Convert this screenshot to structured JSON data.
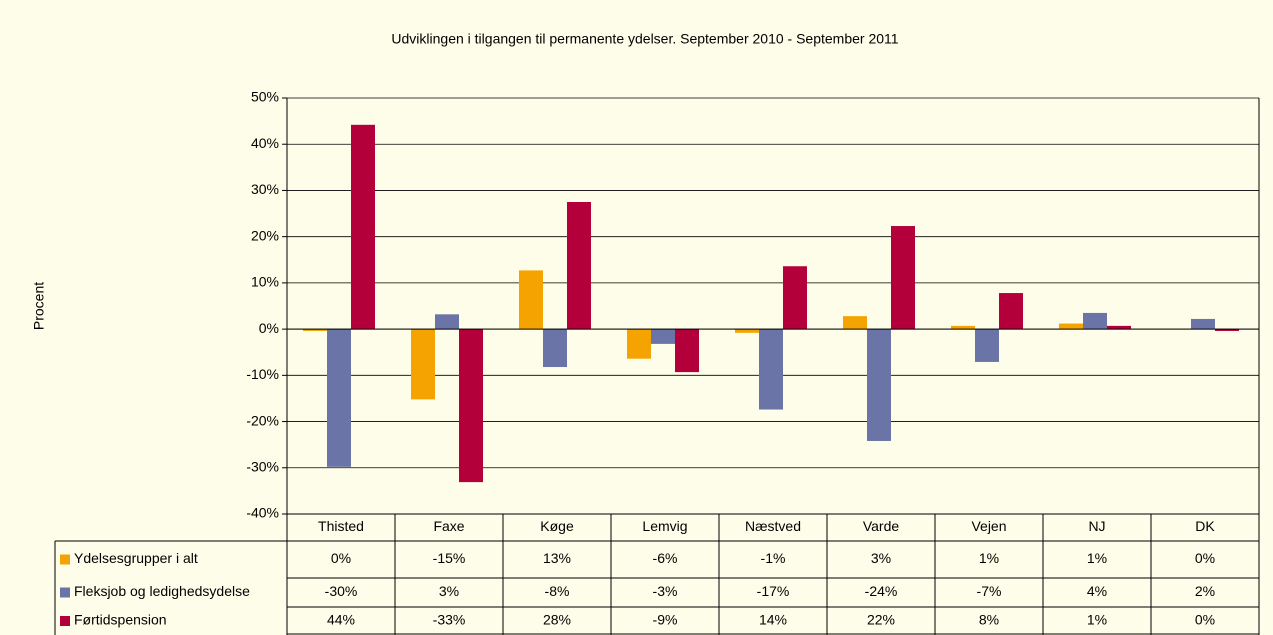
{
  "chart_data": {
    "type": "bar",
    "title": "Udviklingen i tilgangen til permanente ydelser. September 2010 - September 2011",
    "y_label": "Procent",
    "categories": [
      "Thisted",
      "Faxe",
      "Køge",
      "Lemvig",
      "Næstved",
      "Varde",
      "Vejen",
      "NJ",
      "DK"
    ],
    "series": [
      {
        "name": "Ydelsesgrupper i alt",
        "color": "#f4a300",
        "values": [
          -0.4,
          -15.2,
          12.7,
          -6.4,
          -0.8,
          2.8,
          0.7,
          1.2,
          0
        ],
        "value_labels": [
          "0%",
          "-15%",
          "13%",
          "-6%",
          "-1%",
          "3%",
          "1%",
          "1%",
          "0%"
        ]
      },
      {
        "name": "Fleksjob og ledighedsydelse",
        "color": "#6b74a6",
        "values": [
          -29.8,
          3.2,
          -8.2,
          -3.2,
          -17.4,
          -24.2,
          -7.1,
          3.5,
          2.2
        ],
        "value_labels": [
          "-30%",
          "3%",
          "-8%",
          "-3%",
          "-17%",
          "-24%",
          "-7%",
          "4%",
          "2%"
        ]
      },
      {
        "name": "Førtidspension",
        "color": "#b3003a",
        "values": [
          44.2,
          -33.1,
          27.5,
          -9.3,
          13.6,
          22.3,
          7.8,
          0.7,
          -0.4
        ],
        "value_labels": [
          "44%",
          "-33%",
          "28%",
          "-9%",
          "14%",
          "22%",
          "8%",
          "1%",
          "0%"
        ]
      }
    ],
    "ylim": [
      -40,
      50
    ],
    "yticks": [
      {
        "value": -40,
        "label": "-40%"
      },
      {
        "value": -30,
        "label": "-30%"
      },
      {
        "value": -20,
        "label": "-20%"
      },
      {
        "value": -10,
        "label": "-10%"
      },
      {
        "value": 0,
        "label": "0%"
      },
      {
        "value": 10,
        "label": "10%"
      },
      {
        "value": 20,
        "label": "20%"
      },
      {
        "value": 30,
        "label": "30%"
      },
      {
        "value": 40,
        "label": "40%"
      },
      {
        "value": 50,
        "label": "50%"
      }
    ],
    "grid": true
  }
}
